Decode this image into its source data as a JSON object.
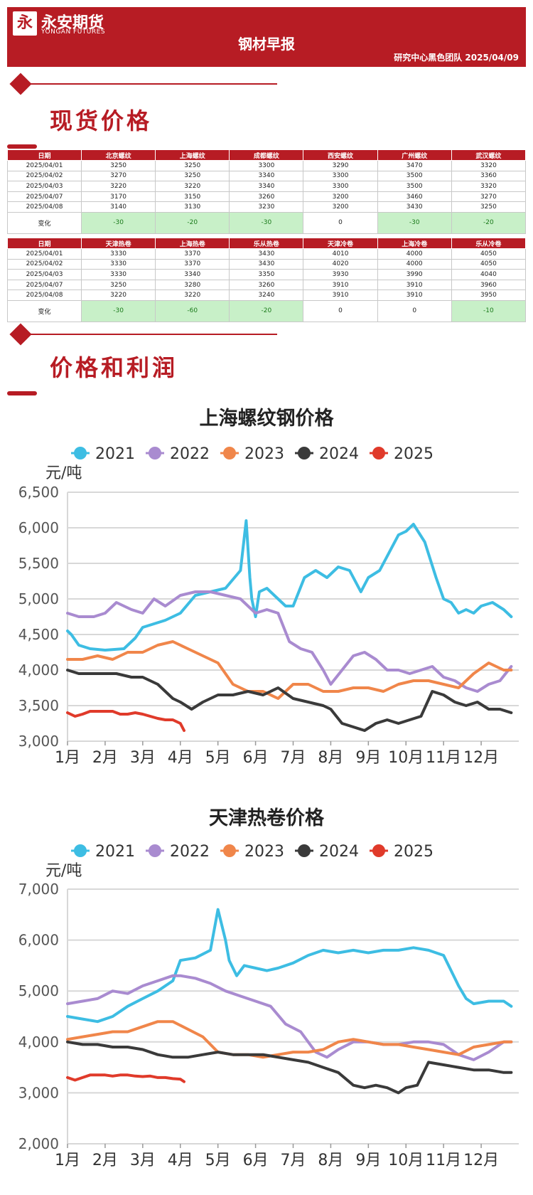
{
  "header": {
    "logo_glyph": "永",
    "brand_cn": "永安期货",
    "brand_en": "YONGAN FUTURES",
    "title": "钢材早报",
    "sub": "研究中心黑色团队   2025/04/09"
  },
  "sections": {
    "spot": "现货价格",
    "profit": "价格和利润"
  },
  "table1": {
    "headers": [
      "日期",
      "北京螺纹",
      "上海螺纹",
      "成都螺纹",
      "西安螺纹",
      "广州螺纹",
      "武汉螺纹"
    ],
    "rows": [
      [
        "2025/04/01",
        "3250",
        "3250",
        "3300",
        "3290",
        "3470",
        "3320"
      ],
      [
        "2025/04/02",
        "3270",
        "3250",
        "3340",
        "3300",
        "3500",
        "3360"
      ],
      [
        "2025/04/03",
        "3220",
        "3220",
        "3340",
        "3300",
        "3500",
        "3320"
      ],
      [
        "2025/04/07",
        "3170",
        "3150",
        "3260",
        "3200",
        "3460",
        "3270"
      ],
      [
        "2025/04/08",
        "3140",
        "3130",
        "3230",
        "3200",
        "3430",
        "3250"
      ]
    ],
    "change": [
      "变化",
      "-30",
      "-20",
      "-30",
      "0",
      "-30",
      "-20"
    ]
  },
  "table2": {
    "headers": [
      "日期",
      "天津热卷",
      "上海热卷",
      "乐从热卷",
      "天津冷卷",
      "上海冷卷",
      "乐从冷卷"
    ],
    "rows": [
      [
        "2025/04/01",
        "3330",
        "3370",
        "3430",
        "4010",
        "4000",
        "4050"
      ],
      [
        "2025/04/02",
        "3330",
        "3370",
        "3430",
        "4020",
        "4000",
        "4050"
      ],
      [
        "2025/04/03",
        "3330",
        "3340",
        "3350",
        "3930",
        "3990",
        "4040"
      ],
      [
        "2025/04/07",
        "3250",
        "3280",
        "3260",
        "3910",
        "3910",
        "3960"
      ],
      [
        "2025/04/08",
        "3220",
        "3220",
        "3240",
        "3910",
        "3910",
        "3950"
      ]
    ],
    "change": [
      "变化",
      "-30",
      "-60",
      "-20",
      "0",
      "0",
      "-10"
    ]
  },
  "chart_data": [
    {
      "type": "line",
      "title": "上海螺纹钢价格",
      "ylabel": "元/吨",
      "ylim": [
        3000,
        6500
      ],
      "yticks": [
        "3,000",
        "3,500",
        "4,000",
        "4,500",
        "5,000",
        "5,500",
        "6,000",
        "6,500"
      ],
      "categories": [
        "1月",
        "2月",
        "3月",
        "4月",
        "5月",
        "6月",
        "7月",
        "8月",
        "9月",
        "10月",
        "11月",
        "12月"
      ],
      "legend_position": "top",
      "series": [
        {
          "name": "2021",
          "color": "#3dbde3",
          "x": [
            0,
            0.1,
            0.3,
            0.6,
            1.0,
            1.5,
            1.8,
            2.0,
            2.3,
            2.6,
            3.0,
            3.4,
            3.8,
            4.2,
            4.6,
            4.75,
            4.85,
            4.9,
            5.0,
            5.1,
            5.3,
            5.5,
            5.8,
            6.0,
            6.3,
            6.6,
            6.9,
            7.2,
            7.5,
            7.8,
            8.0,
            8.3,
            8.5,
            8.8,
            9.0,
            9.2,
            9.5,
            9.8,
            10.0,
            10.2,
            10.4,
            10.6,
            10.8,
            11.0,
            11.3,
            11.6,
            11.8
          ],
          "y": [
            4550,
            4500,
            4350,
            4300,
            4280,
            4300,
            4450,
            4600,
            4650,
            4700,
            4800,
            5050,
            5100,
            5150,
            5400,
            6100,
            5300,
            5000,
            4750,
            5100,
            5150,
            5050,
            4900,
            4900,
            5300,
            5400,
            5300,
            5450,
            5400,
            5100,
            5300,
            5400,
            5600,
            5900,
            5950,
            6050,
            5800,
            5300,
            5000,
            4950,
            4800,
            4850,
            4800,
            4900,
            4950,
            4850,
            4750
          ]
        },
        {
          "name": "2022",
          "color": "#a98bd0",
          "x": [
            0,
            0.3,
            0.7,
            1.0,
            1.3,
            1.7,
            2.0,
            2.3,
            2.6,
            3.0,
            3.4,
            3.8,
            4.2,
            4.6,
            5.0,
            5.3,
            5.6,
            5.9,
            6.2,
            6.5,
            6.8,
            7.0,
            7.3,
            7.6,
            7.9,
            8.2,
            8.5,
            8.8,
            9.1,
            9.4,
            9.7,
            10.0,
            10.3,
            10.6,
            10.9,
            11.2,
            11.5,
            11.8
          ],
          "y": [
            4800,
            4750,
            4750,
            4800,
            4950,
            4850,
            4800,
            5000,
            4900,
            5050,
            5100,
            5100,
            5050,
            5000,
            4800,
            4850,
            4800,
            4400,
            4300,
            4250,
            4000,
            3800,
            4000,
            4200,
            4250,
            4150,
            4000,
            4000,
            3950,
            4000,
            4050,
            3900,
            3850,
            3750,
            3700,
            3800,
            3850,
            4050
          ]
        },
        {
          "name": "2023",
          "color": "#f0864a",
          "x": [
            0,
            0.4,
            0.8,
            1.2,
            1.6,
            2.0,
            2.4,
            2.8,
            3.2,
            3.6,
            4.0,
            4.4,
            4.8,
            5.2,
            5.6,
            6.0,
            6.4,
            6.8,
            7.2,
            7.6,
            8.0,
            8.4,
            8.8,
            9.2,
            9.6,
            10.0,
            10.4,
            10.8,
            11.2,
            11.6,
            11.8
          ],
          "y": [
            4150,
            4150,
            4200,
            4150,
            4250,
            4250,
            4350,
            4400,
            4300,
            4200,
            4100,
            3800,
            3700,
            3700,
            3600,
            3800,
            3800,
            3700,
            3700,
            3750,
            3750,
            3700,
            3800,
            3850,
            3850,
            3800,
            3750,
            3950,
            4100,
            4000,
            4000
          ]
        },
        {
          "name": "2024",
          "color": "#3a3a3a",
          "x": [
            0,
            0.3,
            0.7,
            1.0,
            1.3,
            1.7,
            2.0,
            2.4,
            2.8,
            3.0,
            3.3,
            3.6,
            4.0,
            4.4,
            4.8,
            5.2,
            5.6,
            6.0,
            6.4,
            6.8,
            7.0,
            7.3,
            7.6,
            7.9,
            8.2,
            8.5,
            8.8,
            9.1,
            9.4,
            9.7,
            10.0,
            10.3,
            10.6,
            10.9,
            11.2,
            11.5,
            11.8
          ],
          "y": [
            4000,
            3950,
            3950,
            3950,
            3950,
            3900,
            3900,
            3800,
            3600,
            3550,
            3450,
            3550,
            3650,
            3650,
            3700,
            3650,
            3750,
            3600,
            3550,
            3500,
            3450,
            3250,
            3200,
            3150,
            3250,
            3300,
            3250,
            3300,
            3350,
            3700,
            3650,
            3550,
            3500,
            3550,
            3450,
            3450,
            3400
          ]
        },
        {
          "name": "2025",
          "color": "#e03a2a",
          "x": [
            0,
            0.2,
            0.4,
            0.6,
            0.8,
            1.0,
            1.2,
            1.4,
            1.6,
            1.8,
            2.0,
            2.2,
            2.4,
            2.6,
            2.8,
            3.0,
            3.1
          ],
          "y": [
            3400,
            3350,
            3380,
            3420,
            3420,
            3420,
            3420,
            3380,
            3380,
            3400,
            3380,
            3350,
            3320,
            3300,
            3300,
            3250,
            3150
          ]
        }
      ]
    },
    {
      "type": "line",
      "title": "天津热卷价格",
      "ylabel": "元/吨",
      "ylim": [
        2000,
        7000
      ],
      "yticks": [
        "2,000",
        "3,000",
        "4,000",
        "5,000",
        "6,000",
        "7,000"
      ],
      "categories": [
        "1月",
        "2月",
        "3月",
        "4月",
        "5月",
        "6月",
        "7月",
        "8月",
        "9月",
        "10月",
        "11月",
        "12月"
      ],
      "legend_position": "top",
      "series": [
        {
          "name": "2021",
          "color": "#3dbde3",
          "x": [
            0,
            0.4,
            0.8,
            1.2,
            1.6,
            2.0,
            2.4,
            2.8,
            3.0,
            3.4,
            3.8,
            4.0,
            4.2,
            4.3,
            4.5,
            4.7,
            5.0,
            5.3,
            5.6,
            6.0,
            6.4,
            6.8,
            7.2,
            7.6,
            8.0,
            8.4,
            8.8,
            9.2,
            9.6,
            10.0,
            10.2,
            10.4,
            10.6,
            10.8,
            11.2,
            11.6,
            11.8
          ],
          "y": [
            4500,
            4450,
            4400,
            4500,
            4700,
            4850,
            5000,
            5200,
            5600,
            5650,
            5800,
            6600,
            6000,
            5600,
            5300,
            5500,
            5450,
            5400,
            5450,
            5550,
            5700,
            5800,
            5750,
            5800,
            5750,
            5800,
            5800,
            5850,
            5800,
            5700,
            5400,
            5100,
            4850,
            4750,
            4800,
            4800,
            4700
          ]
        },
        {
          "name": "2022",
          "color": "#a98bd0",
          "x": [
            0,
            0.4,
            0.8,
            1.2,
            1.6,
            2.0,
            2.4,
            2.8,
            3.0,
            3.4,
            3.8,
            4.2,
            4.6,
            5.0,
            5.4,
            5.8,
            6.2,
            6.6,
            6.9,
            7.2,
            7.6,
            8.0,
            8.4,
            8.8,
            9.2,
            9.6,
            10.0,
            10.4,
            10.8,
            11.2,
            11.6,
            11.8
          ],
          "y": [
            4750,
            4800,
            4850,
            5000,
            4950,
            5100,
            5200,
            5300,
            5300,
            5250,
            5150,
            5000,
            4900,
            4800,
            4700,
            4350,
            4200,
            3800,
            3700,
            3850,
            4000,
            4000,
            3950,
            3950,
            4000,
            4000,
            3950,
            3750,
            3650,
            3800,
            4000,
            4000
          ]
        },
        {
          "name": "2023",
          "color": "#f0864a",
          "x": [
            0,
            0.4,
            0.8,
            1.2,
            1.6,
            2.0,
            2.4,
            2.8,
            3.2,
            3.6,
            4.0,
            4.4,
            4.8,
            5.2,
            5.6,
            6.0,
            6.4,
            6.8,
            7.2,
            7.6,
            8.0,
            8.4,
            8.8,
            9.2,
            9.6,
            10.0,
            10.4,
            10.8,
            11.2,
            11.6,
            11.8
          ],
          "y": [
            4050,
            4100,
            4150,
            4200,
            4200,
            4300,
            4400,
            4400,
            4250,
            4100,
            3800,
            3750,
            3750,
            3700,
            3750,
            3800,
            3800,
            3850,
            4000,
            4050,
            4000,
            3950,
            3950,
            3900,
            3850,
            3800,
            3750,
            3900,
            3950,
            4000,
            4000
          ]
        },
        {
          "name": "2024",
          "color": "#3a3a3a",
          "x": [
            0,
            0.4,
            0.8,
            1.2,
            1.6,
            2.0,
            2.4,
            2.8,
            3.2,
            3.6,
            4.0,
            4.4,
            4.8,
            5.2,
            5.6,
            6.0,
            6.4,
            6.8,
            7.2,
            7.6,
            7.9,
            8.2,
            8.5,
            8.8,
            9.0,
            9.3,
            9.6,
            10.0,
            10.4,
            10.8,
            11.2,
            11.6,
            11.8
          ],
          "y": [
            4000,
            3950,
            3950,
            3900,
            3900,
            3850,
            3750,
            3700,
            3700,
            3750,
            3800,
            3750,
            3750,
            3750,
            3700,
            3650,
            3600,
            3500,
            3400,
            3150,
            3100,
            3150,
            3100,
            3000,
            3100,
            3150,
            3600,
            3550,
            3500,
            3450,
            3450,
            3400,
            3400
          ]
        },
        {
          "name": "2025",
          "color": "#e03a2a",
          "x": [
            0,
            0.2,
            0.4,
            0.6,
            0.8,
            1.0,
            1.2,
            1.4,
            1.6,
            1.8,
            2.0,
            2.2,
            2.4,
            2.6,
            2.8,
            3.0,
            3.1
          ],
          "y": [
            3300,
            3250,
            3300,
            3350,
            3350,
            3350,
            3330,
            3350,
            3350,
            3330,
            3320,
            3330,
            3300,
            3300,
            3280,
            3270,
            3220
          ]
        }
      ]
    }
  ]
}
